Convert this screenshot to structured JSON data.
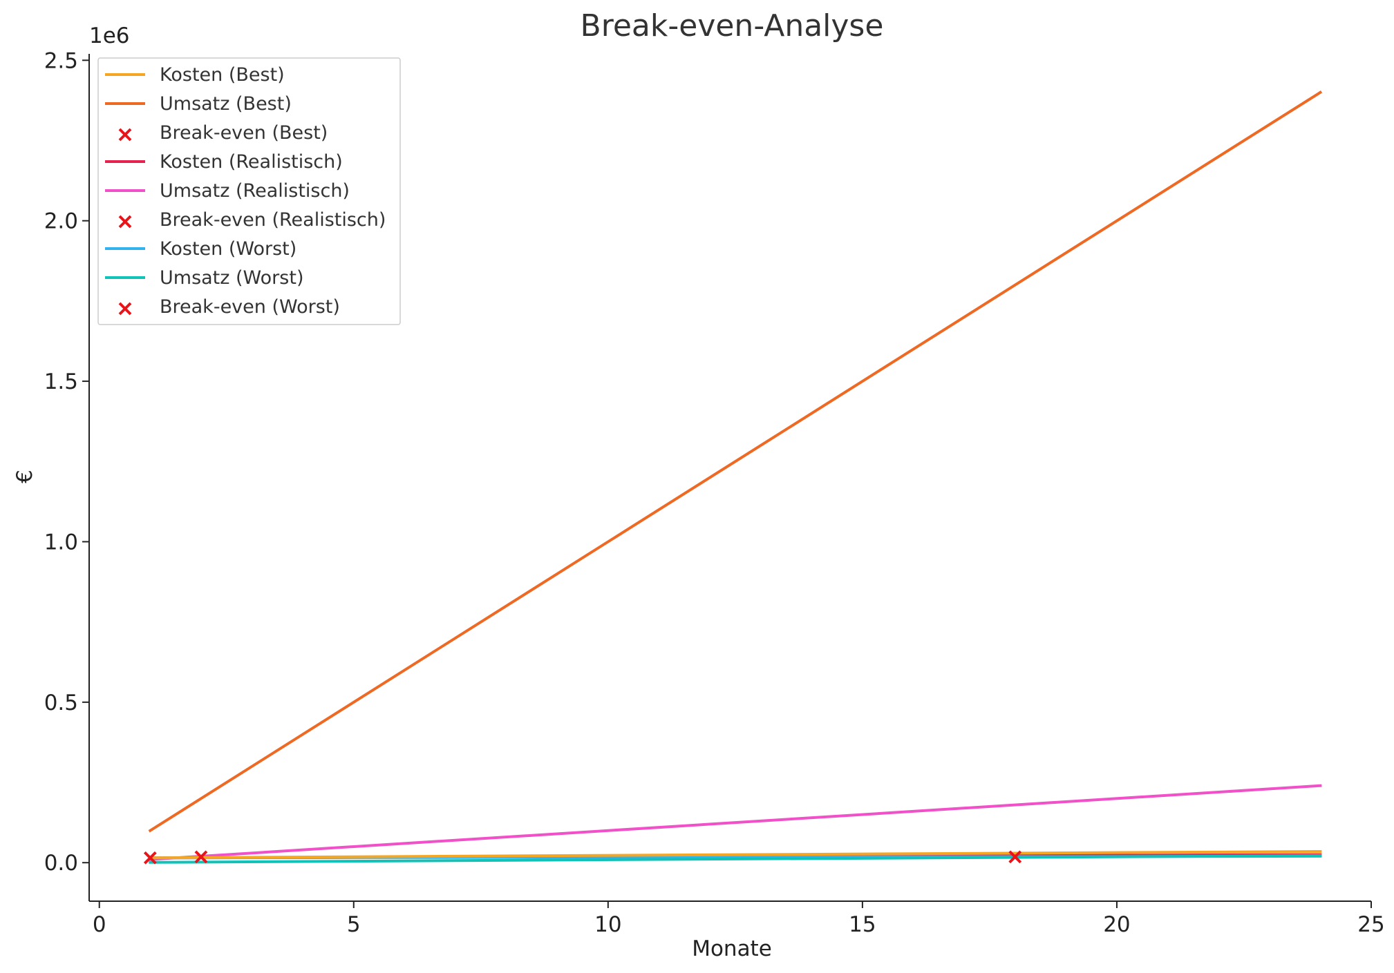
{
  "chart_data": {
    "type": "line",
    "title": "Break-even-Analyse",
    "xlabel": "Monate",
    "ylabel": "€",
    "y_offset_label": "1e6",
    "xlim": [
      -0.2,
      25
    ],
    "ylim": [
      -120000,
      2520000
    ],
    "xticks": [
      0,
      5,
      10,
      15,
      20,
      25
    ],
    "xtick_labels": [
      "0",
      "5",
      "10",
      "15",
      "20",
      "25"
    ],
    "yticks": [
      0,
      500000,
      1000000,
      1500000,
      2000000,
      2500000
    ],
    "ytick_labels": [
      "0.0",
      "0.5",
      "1.0",
      "1.5",
      "2.0",
      "2.5"
    ],
    "grid": false,
    "legend_position": "top-left",
    "series": [
      {
        "name": "Kosten (Best)",
        "kind": "line",
        "color": "#f5a623",
        "x": [
          1,
          24
        ],
        "y": [
          15000,
          35000
        ]
      },
      {
        "name": "Umsatz (Best)",
        "kind": "line",
        "color": "#ee6a24",
        "x": [
          1,
          24
        ],
        "y": [
          100000,
          2400000
        ]
      },
      {
        "name": "Break-even (Best)",
        "kind": "marker",
        "color": "#e8141a",
        "x": [
          1
        ],
        "y": [
          15000
        ]
      },
      {
        "name": "Kosten (Realistisch)",
        "kind": "line",
        "color": "#e6224e",
        "x": [
          1,
          24
        ],
        "y": [
          15000,
          25000
        ]
      },
      {
        "name": "Umsatz (Realistisch)",
        "kind": "line",
        "color": "#f050c8",
        "x": [
          1,
          24
        ],
        "y": [
          10000,
          240000
        ]
      },
      {
        "name": "Break-even (Realistisch)",
        "kind": "marker",
        "color": "#e8141a",
        "x": [
          2
        ],
        "y": [
          18000
        ]
      },
      {
        "name": "Kosten (Worst)",
        "kind": "line",
        "color": "#33b2f0",
        "x": [
          1,
          24
        ],
        "y": [
          15000,
          20000
        ]
      },
      {
        "name": "Umsatz (Worst)",
        "kind": "line",
        "color": "#11c2b8",
        "x": [
          1,
          24
        ],
        "y": [
          1000,
          22000
        ]
      },
      {
        "name": "Break-even (Worst)",
        "kind": "marker",
        "color": "#e8141a",
        "x": [
          18
        ],
        "y": [
          18000
        ]
      }
    ]
  }
}
